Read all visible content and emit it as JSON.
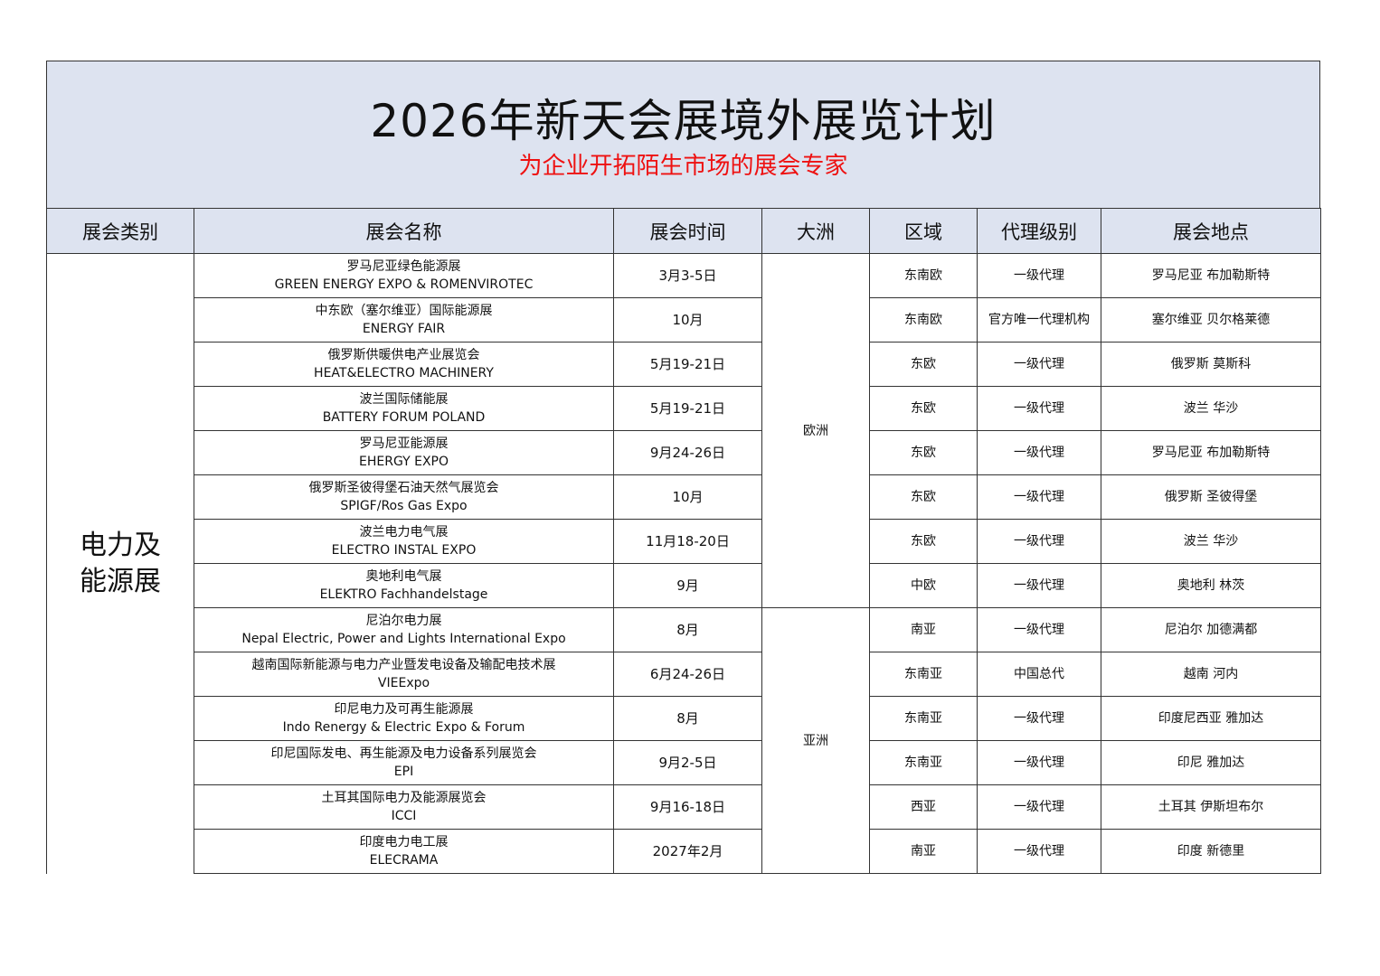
{
  "title": "2026年新天会展境外展览计划",
  "subtitle": "为企业开拓陌生市场的展会专家",
  "headers": [
    "展会类别",
    "展会名称",
    "展会时间",
    "大洲",
    "区域",
    "代理级别",
    "展会地点"
  ],
  "category": "电力及\n能源展",
  "continents": [
    "欧洲",
    "亚洲"
  ],
  "rows": [
    {
      "name_zh": "罗马尼亚绿色能源展",
      "name_en": "GREEN ENERGY EXPO & ROMENVIROTEC",
      "date": "3月3-5日",
      "region": "东南欧",
      "agent": "一级代理",
      "location": "罗马尼亚 布加勒斯特"
    },
    {
      "name_zh": "中东欧（塞尔维亚）国际能源展",
      "name_en": "ENERGY FAIR",
      "date": "10月",
      "region": "东南欧",
      "agent": "官方唯一代理机构",
      "location": "塞尔维亚 贝尔格莱德"
    },
    {
      "name_zh": "俄罗斯供暖供电产业展览会",
      "name_en": "HEAT&ELECTRO MACHINERY",
      "date": "5月19-21日",
      "region": "东欧",
      "agent": "一级代理",
      "location": "俄罗斯 莫斯科"
    },
    {
      "name_zh": "波兰国际储能展",
      "name_en": "BATTERY FORUM POLAND",
      "date": "5月19-21日",
      "region": "东欧",
      "agent": "一级代理",
      "location": "波兰 华沙"
    },
    {
      "name_zh": "罗马尼亚能源展",
      "name_en": "EHERGY EXPO",
      "date": "9月24-26日",
      "region": "东欧",
      "agent": "一级代理",
      "location": "罗马尼亚 布加勒斯特"
    },
    {
      "name_zh": "俄罗斯圣彼得堡石油天然气展览会",
      "name_en": "SPIGF/Ros Gas Expo",
      "date": "10月",
      "region": "东欧",
      "agent": "一级代理",
      "location": "俄罗斯 圣彼得堡"
    },
    {
      "name_zh": "波兰电力电气展",
      "name_en": "ELECTRO INSTAL EXPO",
      "date": "11月18-20日",
      "region": "东欧",
      "agent": "一级代理",
      "location": "波兰 华沙"
    },
    {
      "name_zh": "奥地利电气展",
      "name_en": "ELEKTRO Fachhandelstage",
      "date": "9月",
      "region": "中欧",
      "agent": "一级代理",
      "location": "奥地利 林茨"
    },
    {
      "name_zh": "尼泊尔电力展",
      "name_en": "Nepal Electric, Power and Lights International Expo",
      "date": "8月",
      "region": "南亚",
      "agent": "一级代理",
      "location": "尼泊尔 加德满都"
    },
    {
      "name_zh": "越南国际新能源与电力产业暨发电设备及输配电技术展",
      "name_en": "VIEExpo",
      "date": "6月24-26日",
      "region": "东南亚",
      "agent": "中国总代",
      "location": "越南 河内"
    },
    {
      "name_zh": "印尼电力及可再生能源展",
      "name_en": "Indo Renergy & Electric Expo & Forum",
      "date": "8月",
      "region": "东南亚",
      "agent": "一级代理",
      "location": "印度尼西亚 雅加达"
    },
    {
      "name_zh": "印尼国际发电、再生能源及电力设备系列展览会",
      "name_en": "EPI",
      "date": "9月2-5日",
      "region": "东南亚",
      "agent": "一级代理",
      "location": "印尼 雅加达"
    },
    {
      "name_zh": "土耳其国际电力及能源展览会",
      "name_en": "ICCI",
      "date": "9月16-18日",
      "region": "西亚",
      "agent": "一级代理",
      "location": "土耳其 伊斯坦布尔"
    },
    {
      "name_zh": "印度电力电工展",
      "name_en": "ELECRAMA",
      "date": "2027年2月",
      "region": "南亚",
      "agent": "一级代理",
      "location": "印度 新德里"
    }
  ]
}
